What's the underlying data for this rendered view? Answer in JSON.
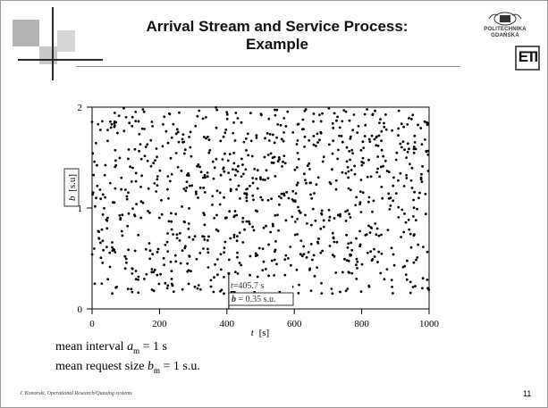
{
  "slide": {
    "title_line1": "Arrival Stream and Service Process:",
    "title_line2": "Example",
    "logo": {
      "line1": "POLITECHNIKA",
      "line2": "GDAŃSKA",
      "mark": "ETI"
    },
    "means": {
      "line1_prefix": "mean interval ",
      "line1_var": "a",
      "line1_sub": "m",
      "line1_suffix": " = 1 s",
      "line2_prefix": "mean request size ",
      "line2_var": "b",
      "line2_sub": "m",
      "line2_suffix": " = 1 s.u."
    },
    "footer": "J. Konorski, Operational Research/Queuing systems",
    "page_number": "11"
  },
  "chart_data": {
    "type": "scatter",
    "x_label_var": "t",
    "x_label_unit": "[s]",
    "y_label_var": "b",
    "y_label_unit": "[s.u]",
    "x_ticks": [
      "0",
      "200",
      "400",
      "600",
      "800",
      "1000"
    ],
    "y_ticks": [
      "0",
      "1",
      "2"
    ],
    "xlim": [
      0,
      1000
    ],
    "ylim": [
      0,
      2
    ],
    "grid": false,
    "marker_color": "#000000",
    "annotation": {
      "t_var": "t",
      "t_text": "=405.7 s",
      "b_var": "b",
      "b_text": " = 0.35 s.u.",
      "x": 405.7,
      "y": 0.35
    },
    "points_note": "",
    "seed": 7,
    "n_points": 1000
  }
}
